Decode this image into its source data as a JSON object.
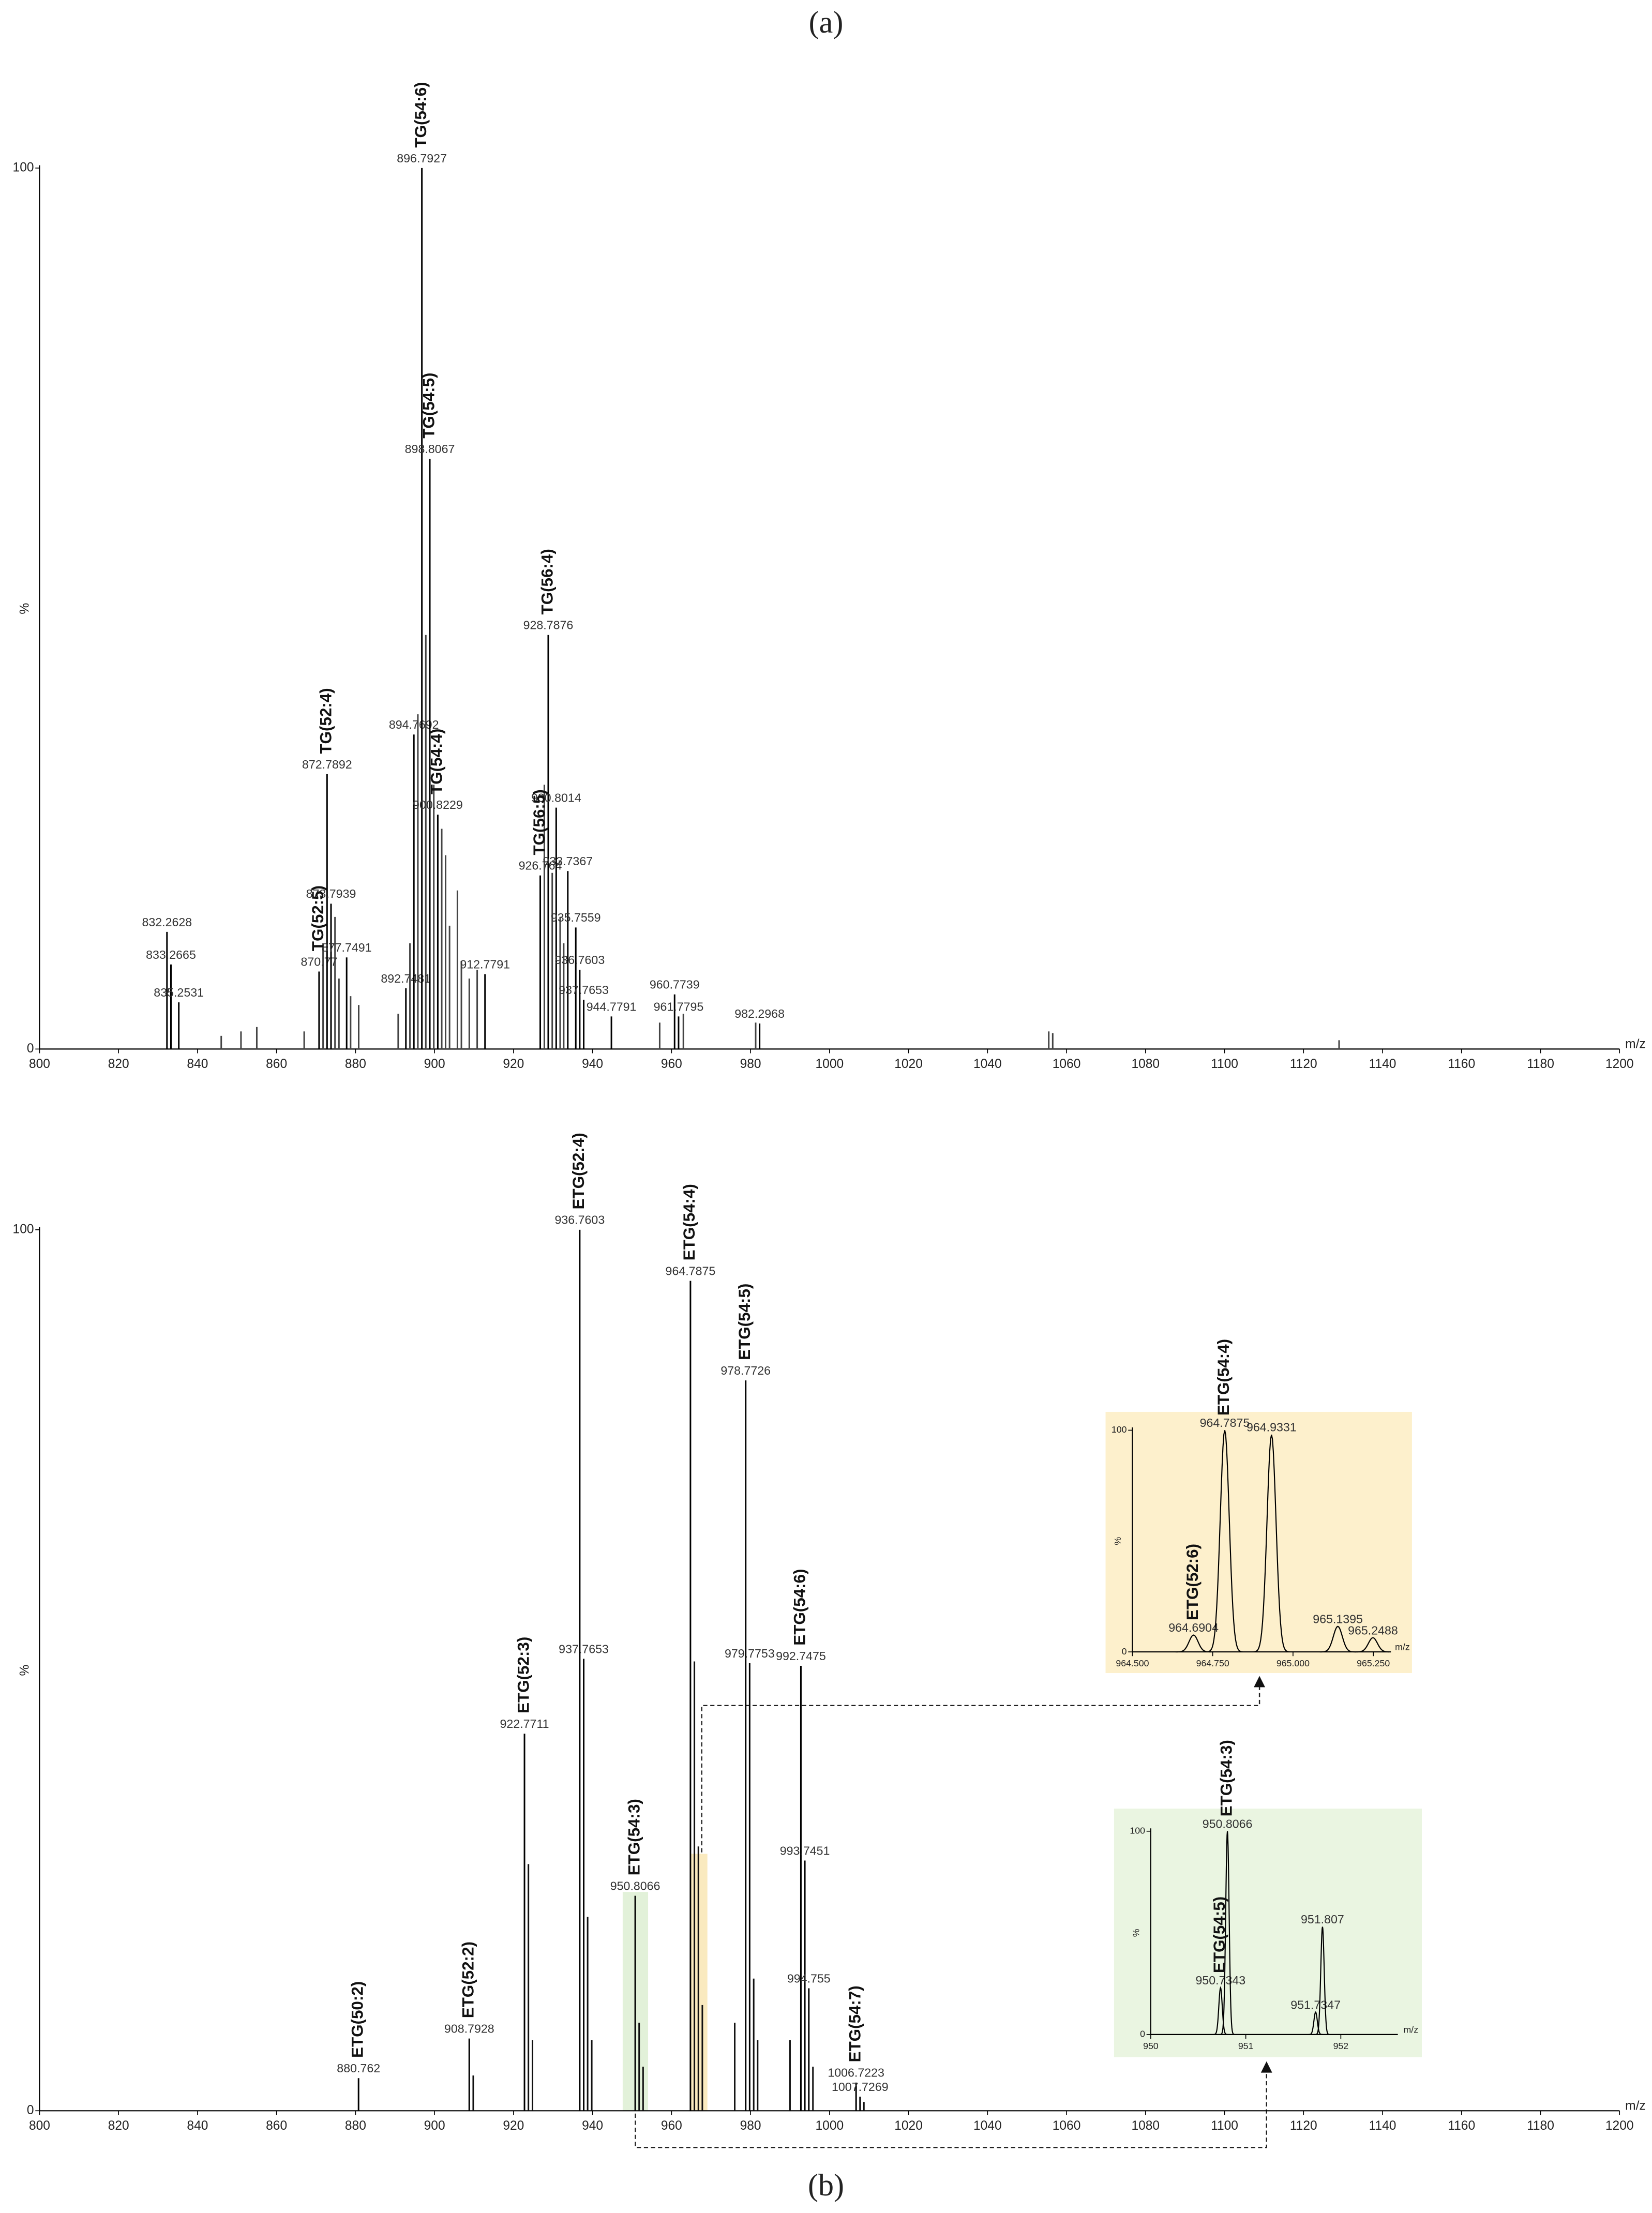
{
  "chart_data": [
    {
      "type": "stem",
      "panel_label": "(a)",
      "x_label": "m/z",
      "y_label": "%",
      "color": "#444444",
      "xlim": [
        800,
        1200
      ],
      "xticks": [
        800,
        820,
        840,
        860,
        880,
        900,
        920,
        940,
        960,
        980,
        1000,
        1020,
        1040,
        1060,
        1080,
        1100,
        1120,
        1140,
        1160,
        1180,
        1200
      ],
      "ylim": [
        0,
        100
      ],
      "yticks": [
        0,
        100
      ],
      "peaks": {
        "x": [
          832.2628,
          833.2665,
          835.2531,
          870.77,
          872.7892,
          873.7939,
          877.7491,
          892.7481,
          894.7692,
          896.7927,
          898.8067,
          900.8229,
          912.7791,
          926.764,
          928.7876,
          930.8014,
          933.7367,
          935.7559,
          936.7603,
          937.7653,
          944.7791,
          960.7739,
          961.7795,
          982.2968
        ],
        "values": [
          13.3,
          9.6,
          5.3,
          8.8,
          31.2,
          16.5,
          10.4,
          6.9,
          35.7,
          100,
          67,
          26.6,
          8.5,
          19.7,
          47,
          27.4,
          20.2,
          13.8,
          9,
          5.6,
          3.7,
          6.2,
          3.7,
          2.9
        ]
      },
      "minor_peaks": {
        "x": [
          846,
          851,
          855,
          867,
          871.78,
          874.8,
          875.8,
          878.75,
          880.8,
          890.8,
          893.77,
          895.78,
          897.79,
          899.81,
          901.82,
          902.8,
          903.8,
          905.8,
          906.8,
          908.8,
          910.8,
          927.8,
          929.8,
          931.8,
          932.7,
          957,
          963,
          981.3,
          1055.5,
          1056.5,
          1129
        ],
        "values": [
          1.5,
          2,
          2.5,
          2,
          12,
          15,
          8,
          6,
          5,
          4,
          12,
          38,
          47,
          30,
          25,
          22,
          14,
          18,
          10,
          8,
          9,
          30,
          20,
          15,
          12,
          3,
          4,
          3,
          2,
          1.8,
          1
        ]
      },
      "annotations": [
        {
          "text": "TG(52:5)",
          "x": 870.77
        },
        {
          "text": "TG(52:4)",
          "x": 872.7892
        },
        {
          "text": "TG(54:6)",
          "x": 896.7927
        },
        {
          "text": "TG(54:5)",
          "x": 898.8067
        },
        {
          "text": "TG(54:4)",
          "x": 900.8229
        },
        {
          "text": "TG(56:5)",
          "x": 926.764
        },
        {
          "text": "TG(56:4)",
          "x": 928.7876
        }
      ]
    },
    {
      "type": "stem",
      "panel_label": "(b)",
      "x_label": "m/z",
      "y_label": "%",
      "color": "#111111",
      "xlim": [
        800,
        1200
      ],
      "xticks": [
        800,
        820,
        840,
        860,
        880,
        900,
        920,
        940,
        960,
        980,
        1000,
        1020,
        1040,
        1060,
        1080,
        1100,
        1120,
        1140,
        1160,
        1180,
        1200
      ],
      "ylim": [
        0,
        100
      ],
      "yticks": [
        0,
        100
      ],
      "peaks": {
        "x": [
          880.762,
          908.7928,
          922.7711,
          936.7603,
          937.7653,
          950.8066,
          964.7875,
          978.7726,
          979.7753,
          992.7475,
          993.7451,
          994.755,
          1006.7223,
          1007.7269
        ],
        "values": [
          3.7,
          8.2,
          42.8,
          100,
          51.3,
          24.4,
          94.2,
          82.9,
          50.8,
          50.5,
          28.4,
          13.9,
          3.2,
          1.6
        ]
      },
      "minor_peaks": {
        "x": [
          909.8,
          923.77,
          924.8,
          938.76,
          939.8,
          951.8,
          952.8,
          965.79,
          966.8,
          967.8,
          976,
          980.8,
          981.8,
          990,
          995.8,
          1008.7
        ],
        "values": [
          4,
          28,
          8,
          22,
          8,
          10,
          5,
          51,
          30,
          12,
          10,
          15,
          8,
          8,
          5,
          1
        ]
      },
      "annotations": [
        {
          "text": "ETG(50:2)",
          "x": 880.762
        },
        {
          "text": "ETG(52:2)",
          "x": 908.7928
        },
        {
          "text": "ETG(52:3)",
          "x": 922.7711
        },
        {
          "text": "ETG(52:4)",
          "x": 936.7603
        },
        {
          "text": "ETG(54:3)",
          "x": 950.8066
        },
        {
          "text": "ETG(54:4)",
          "x": 964.7875
        },
        {
          "text": "ETG(54:5)",
          "x": 978.7726
        },
        {
          "text": "ETG(54:6)",
          "x": 992.7475
        },
        {
          "text": "ETG(54:7)",
          "x": 1006.7223
        }
      ],
      "insets": [
        {
          "type": "profile",
          "background": "#fdf0cc",
          "x_label": "m/z",
          "y_label": "%",
          "xlim": [
            964.5,
            965.3
          ],
          "xticks": [
            {
              "value": 964.5,
              "label": "964.500"
            },
            {
              "value": 964.75,
              "label": "964.750"
            },
            {
              "value": 965,
              "label": "965.000"
            },
            {
              "value": 965.25,
              "label": "965.250"
            }
          ],
          "ylim": [
            0,
            100
          ],
          "yticks": [
            0,
            100
          ],
          "peaks": {
            "x": [
              964.6904,
              964.7875,
              964.9331,
              965.1395,
              965.2488
            ],
            "values": [
              7.6,
              100,
              98,
              11.5,
              6.4
            ]
          },
          "annotations": [
            {
              "text": "ETG(52:6)",
              "x": 964.6904
            },
            {
              "text": "ETG(54:4)",
              "x": 964.7875
            }
          ]
        },
        {
          "type": "profile",
          "background": "#eaf5e1",
          "x_label": "m/z",
          "y_label": "%",
          "xlim": [
            950,
            952.6
          ],
          "xticks": [
            950,
            951,
            952
          ],
          "ylim": [
            0,
            100
          ],
          "yticks": [
            0,
            100
          ],
          "peaks": {
            "x": [
              950.7343,
              950.8066,
              951.7347,
              951.807
            ],
            "values": [
              23,
              100,
              11,
              53
            ]
          },
          "annotations": [
            {
              "text": "ETG(54:5)",
              "x": 950.7343
            },
            {
              "text": "ETG(54:3)",
              "x": 950.8066
            }
          ]
        }
      ]
    }
  ]
}
